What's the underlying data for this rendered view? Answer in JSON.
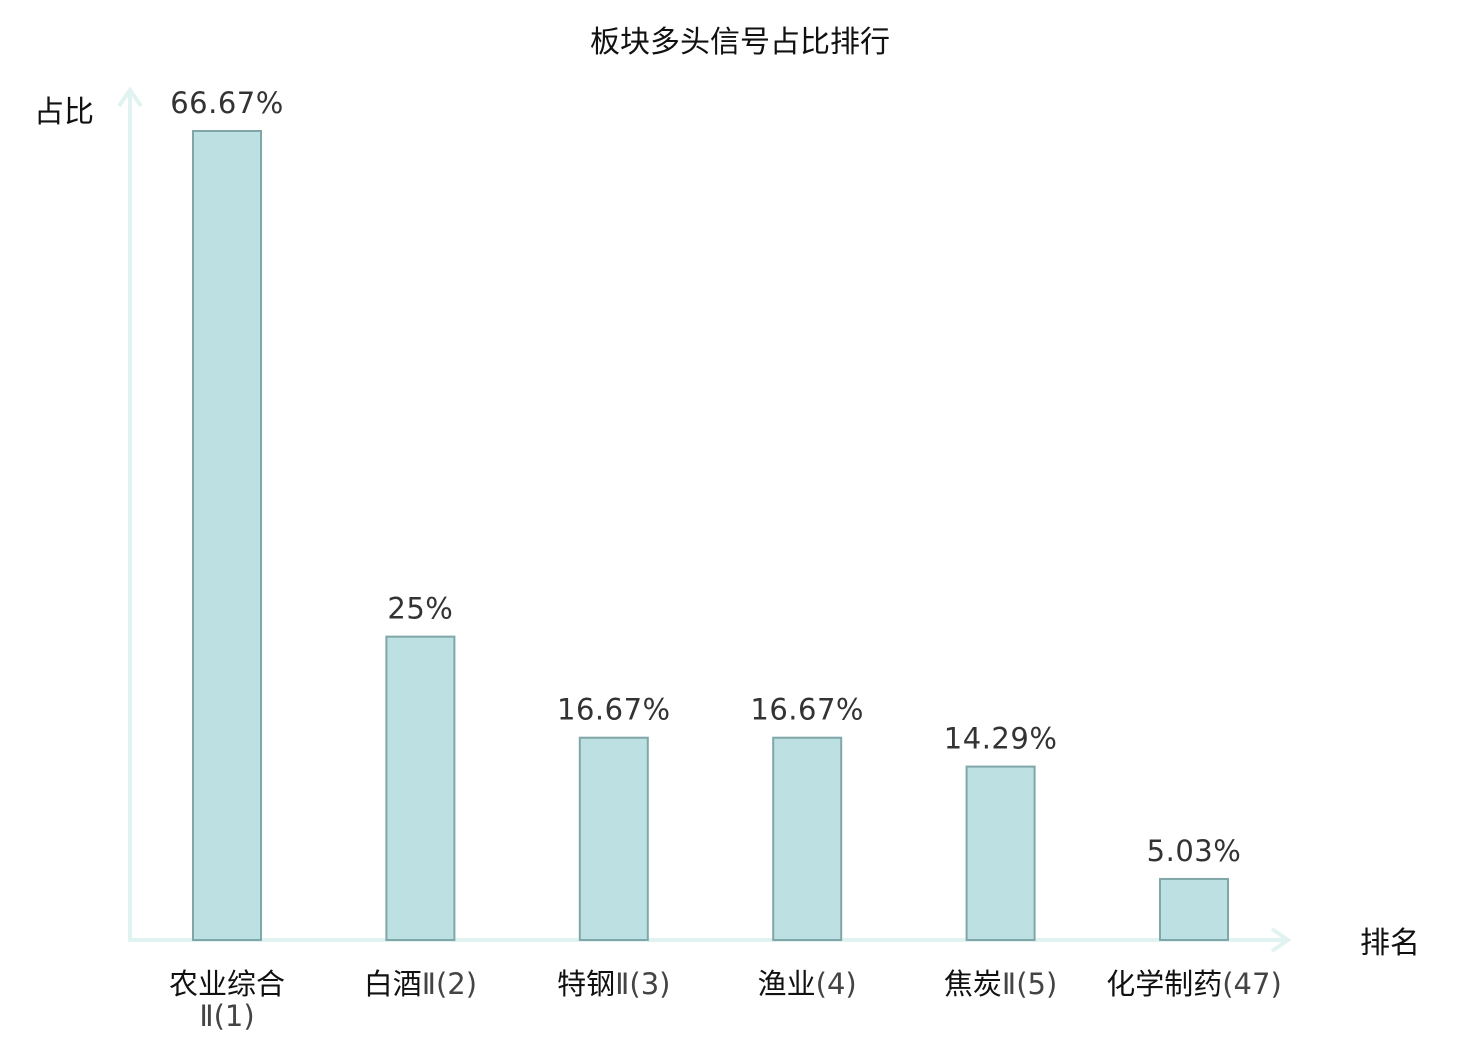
{
  "chart_data": {
    "type": "bar",
    "title": "板块多头信号占比排行",
    "ylabel": "占比",
    "xlabel": "排名",
    "ylim": [
      0,
      70
    ],
    "grid": false,
    "categories": [
      {
        "name": "农业综合",
        "rank": "Ⅱ(1)",
        "highlight": false
      },
      {
        "name": "白酒",
        "rank": "Ⅱ(2)",
        "highlight": false
      },
      {
        "name": "特钢",
        "rank": "Ⅱ(3)",
        "highlight": false
      },
      {
        "name": "渔业",
        "rank": "(4)",
        "highlight": false
      },
      {
        "name": "焦炭",
        "rank": "Ⅱ(5)",
        "highlight": false
      },
      {
        "name": "化学制药",
        "rank": "(47)",
        "highlight": true
      }
    ],
    "values": [
      66.67,
      25,
      16.67,
      16.67,
      14.29,
      5.03
    ],
    "value_labels": [
      "66.67%",
      "25%",
      "16.67%",
      "16.67%",
      "14.29%",
      "5.03%"
    ],
    "colors": {
      "bar_fill": "#bde0e2",
      "bar_stroke": "#7fa6a8",
      "axis": "#e1f3f0",
      "highlight": "#e00000"
    }
  }
}
